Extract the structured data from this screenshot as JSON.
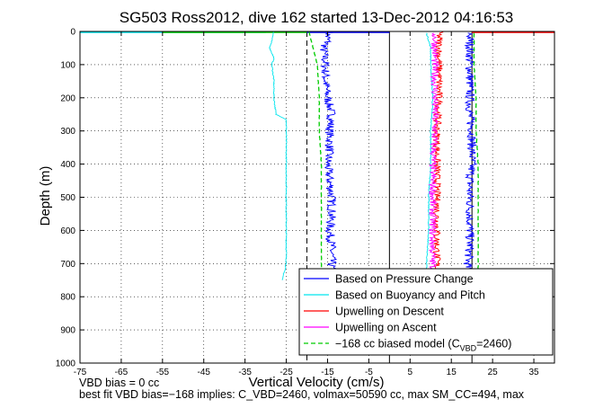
{
  "chart_data": {
    "type": "line",
    "title": "SG503 Ross2012, dive 162 started 13-Dec-2012 04:16:53",
    "xlabel": "Vertical Velocity (cm/s)",
    "ylabel": "Depth (m)",
    "xlim": [
      -75,
      40
    ],
    "ylim": [
      0,
      1000
    ],
    "y_reversed": true,
    "grid": true,
    "x_ticks": [
      "-75",
      "-65",
      "-55",
      "-45",
      "-35",
      "-25",
      "-15",
      "-5",
      "5",
      "15",
      "25",
      "35"
    ],
    "x_tick_values": [
      -75,
      -65,
      -55,
      -45,
      -35,
      -25,
      -15,
      -5,
      5,
      15,
      25,
      35
    ],
    "y_ticks": [
      "0",
      "100",
      "200",
      "300",
      "400",
      "500",
      "600",
      "700",
      "800",
      "900",
      "1000"
    ],
    "y_tick_values": [
      0,
      100,
      200,
      300,
      400,
      500,
      600,
      700,
      800,
      900,
      1000
    ],
    "vertical_lines": [
      {
        "x": -20,
        "style": "dashed"
      },
      {
        "x": 0,
        "style": "solid"
      },
      {
        "x": 20,
        "style": "solid"
      }
    ],
    "series": [
      {
        "name": "Based on Pressure Change",
        "color": "#0000ff",
        "style": "solid",
        "segments": [
          {
            "depth": [
              0,
              10,
              30,
              50,
              100,
              150,
              200,
              250,
              300,
              350,
              400,
              450,
              500,
              550,
              600,
              650,
              700,
              750
            ],
            "values": [
              -14,
              -15,
              -15,
              -16,
              -15.5,
              -15.5,
              -15,
              -14,
              -14.5,
              -14.5,
              -15,
              -14.5,
              -14,
              -14,
              -14.5,
              -14,
              -14,
              -14
            ]
          },
          {
            "depth": [
              750,
              700,
              650,
              600,
              550,
              500,
              450,
              400,
              350,
              300,
              250,
              200,
              150,
              100,
              50,
              20,
              5
            ],
            "values": [
              19,
              19,
              19.5,
              19.5,
              19.5,
              19.5,
              19.5,
              20,
              20,
              20,
              19.5,
              19.5,
              19.5,
              19.5,
              19.5,
              19.5,
              19.5
            ]
          }
        ]
      },
      {
        "name": "Based on Buoyancy and Pitch",
        "color": "#00e5ee",
        "style": "solid",
        "segments": [
          {
            "depth": [
              0,
              50,
              80,
              100,
              150,
              200,
              250,
              265,
              300,
              400,
              500,
              600,
              700,
              750
            ],
            "values": [
              -28,
              -29,
              -28,
              -28.5,
              -28,
              -28,
              -27.5,
              -25,
              -25,
              -25,
              -25,
              -25,
              -25,
              -26
            ]
          },
          {
            "depth": [
              750,
              700,
              600,
              500,
              400,
              300,
              200,
              100,
              50,
              5
            ],
            "values": [
              9,
              9,
              9.5,
              9.5,
              10,
              10,
              10.5,
              10,
              10,
              9
            ]
          }
        ]
      },
      {
        "name": "Upwelling on Descent",
        "color": "#ff0000",
        "style": "solid",
        "segments": [
          {
            "depth": [
              0,
              30,
              100,
              200,
              300,
              400,
              500,
              600,
              700,
              750
            ],
            "values": [
              12,
              12,
              12,
              12,
              11.5,
              11.5,
              11.5,
              11.5,
              11.5,
              11.5
            ]
          }
        ]
      },
      {
        "name": "Upwelling on Ascent",
        "color": "#ff00ff",
        "style": "solid",
        "segments": [
          {
            "depth": [
              750,
              700,
              600,
              500,
              400,
              300,
              200,
              100,
              30,
              5
            ],
            "values": [
              11,
              10.5,
              10.5,
              10.5,
              10.5,
              11,
              11,
              11,
              11,
              11
            ]
          }
        ]
      },
      {
        "name": "-168 cc biased model (C_VBD=2460)",
        "color": "#00cc00",
        "style": "dashed",
        "segments": [
          {
            "depth": [
              0,
              50,
              100,
              200,
              300,
              400,
              500,
              600,
              700,
              750
            ],
            "values": [
              -19.5,
              -18.5,
              -17.5,
              -17,
              -17,
              -16.5,
              -16.5,
              -16.5,
              -16.5,
              -16.5
            ]
          },
          {
            "depth": [
              750,
              700,
              600,
              500,
              400,
              300,
              200,
              100,
              50,
              5
            ],
            "values": [
              21.5,
              21.5,
              21.5,
              21.5,
              21.5,
              21,
              21,
              20.5,
              20.5,
              20.5
            ]
          }
        ]
      }
    ],
    "surface_annotations": [
      {
        "color": "#00e5ee",
        "x0": -75,
        "x1": -30,
        "depth": 0
      },
      {
        "color": "#00cc00",
        "x0": -55,
        "x1": -20,
        "depth": 0
      },
      {
        "color": "#0000ff",
        "x0": -20,
        "x1": 0,
        "depth": 0
      },
      {
        "color": "#ff0000",
        "x0": 20,
        "x1": 40,
        "depth": 0
      }
    ],
    "legend": {
      "placement": "bottom-right",
      "entries": [
        {
          "label": "Based on Pressure Change",
          "color": "#0000ff",
          "style": "solid"
        },
        {
          "label": "Based on Buoyancy and Pitch",
          "color": "#00e5ee",
          "style": "solid"
        },
        {
          "label": "Upwelling on Descent",
          "color": "#ff0000",
          "style": "solid"
        },
        {
          "label": "Upwelling on Ascent",
          "color": "#ff00ff",
          "style": "solid"
        },
        {
          "label_main": "−168 cc biased model (C",
          "label_sub": "VBD",
          "label_end": "=2460)",
          "color": "#00cc00",
          "style": "dashed"
        }
      ]
    }
  },
  "notes": {
    "line1": "VBD bias = 0 cc",
    "line2": "best fit VBD bias=−168 implies: C_VBD=2460, volmax=50590 cc, max SM_CC=494, max"
  }
}
